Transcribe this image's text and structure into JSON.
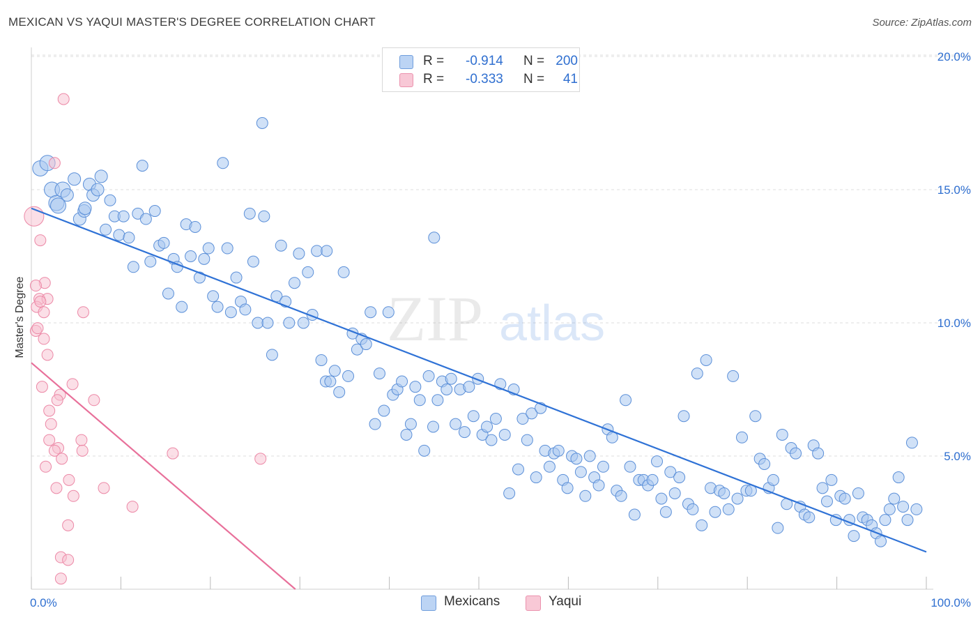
{
  "title": "MEXICAN VS YAQUI MASTER'S DEGREE CORRELATION CHART",
  "source": "Source: ZipAtlas.com",
  "watermark": {
    "zip": "ZIP",
    "atlas": "atlas"
  },
  "legend": {
    "rows": [
      {
        "r_label": "R =",
        "r_value": "-0.914",
        "n_label": "N =",
        "n_value": "200"
      },
      {
        "r_label": "R =",
        "r_value": "-0.333",
        "n_label": "N =",
        "n_value": "41"
      }
    ]
  },
  "colors": {
    "blue_fill": "#a9c8f0",
    "blue_stroke": "#5b8fd8",
    "blue_line": "#2f72d6",
    "pink_fill": "#f7bfd0",
    "pink_stroke": "#ec88a6",
    "pink_line": "#e8709a",
    "tick_label": "#2f6fd0",
    "grid": "#dddddd"
  },
  "chart_data": {
    "type": "scatter",
    "title": "MEXICAN VS YAQUI MASTER'S DEGREE CORRELATION CHART",
    "xlabel": "",
    "ylabel": "Master's Degree",
    "xlim": [
      0,
      100
    ],
    "ylim": [
      0,
      20.5
    ],
    "x_tick_labels": [
      "0.0%",
      "100.0%"
    ],
    "y_ticks": [
      5,
      10,
      15,
      20
    ],
    "y_tick_labels": [
      "5.0%",
      "10.0%",
      "15.0%",
      "20.0%"
    ],
    "grid": true,
    "legend_position": "bottom-center",
    "series": [
      {
        "name": "Mexicans",
        "r": -0.914,
        "n": 200,
        "trend": [
          [
            0,
            14.3
          ],
          [
            100,
            1.4
          ]
        ],
        "points": [
          [
            1.0,
            15.8
          ],
          [
            1.8,
            16.0
          ],
          [
            2.3,
            15.0
          ],
          [
            2.8,
            14.5
          ],
          [
            3.5,
            15.0
          ],
          [
            4.0,
            14.8
          ],
          [
            4.8,
            15.4
          ],
          [
            5.4,
            13.9
          ],
          [
            5.9,
            14.2
          ],
          [
            6.5,
            15.2
          ],
          [
            6.9,
            14.8
          ],
          [
            7.4,
            15.0
          ],
          [
            7.8,
            15.5
          ],
          [
            8.3,
            13.5
          ],
          [
            8.8,
            14.6
          ],
          [
            9.3,
            14.0
          ],
          [
            9.8,
            13.3
          ],
          [
            10.3,
            14.0
          ],
          [
            10.9,
            13.2
          ],
          [
            11.4,
            12.1
          ],
          [
            11.9,
            14.1
          ],
          [
            12.4,
            15.9
          ],
          [
            12.8,
            13.9
          ],
          [
            13.3,
            12.3
          ],
          [
            13.8,
            14.2
          ],
          [
            14.3,
            12.9
          ],
          [
            14.8,
            13.0
          ],
          [
            15.3,
            11.1
          ],
          [
            15.9,
            12.4
          ],
          [
            16.3,
            12.1
          ],
          [
            16.8,
            10.6
          ],
          [
            17.3,
            13.7
          ],
          [
            17.8,
            12.5
          ],
          [
            18.3,
            13.6
          ],
          [
            18.8,
            11.7
          ],
          [
            19.3,
            12.4
          ],
          [
            19.8,
            12.8
          ],
          [
            20.3,
            11.0
          ],
          [
            20.8,
            10.6
          ],
          [
            21.4,
            16.0
          ],
          [
            21.9,
            12.8
          ],
          [
            22.3,
            10.4
          ],
          [
            22.9,
            11.7
          ],
          [
            23.4,
            10.8
          ],
          [
            23.9,
            10.5
          ],
          [
            24.4,
            14.1
          ],
          [
            24.8,
            12.3
          ],
          [
            25.3,
            10.0
          ],
          [
            25.8,
            17.5
          ],
          [
            26.4,
            10.0
          ],
          [
            26.9,
            8.8
          ],
          [
            27.4,
            11.0
          ],
          [
            27.9,
            12.9
          ],
          [
            28.4,
            10.8
          ],
          [
            28.8,
            10.0
          ],
          [
            29.4,
            11.5
          ],
          [
            29.9,
            12.6
          ],
          [
            30.4,
            10.0
          ],
          [
            30.9,
            11.9
          ],
          [
            31.4,
            10.3
          ],
          [
            31.9,
            12.7
          ],
          [
            32.4,
            8.6
          ],
          [
            32.9,
            7.8
          ],
          [
            33.4,
            7.8
          ],
          [
            33.9,
            8.2
          ],
          [
            34.4,
            7.4
          ],
          [
            34.9,
            11.9
          ],
          [
            35.4,
            8.0
          ],
          [
            35.9,
            9.6
          ],
          [
            36.4,
            9.0
          ],
          [
            36.9,
            9.4
          ],
          [
            37.4,
            9.2
          ],
          [
            37.9,
            10.4
          ],
          [
            38.4,
            6.2
          ],
          [
            38.9,
            8.1
          ],
          [
            39.4,
            6.7
          ],
          [
            39.9,
            10.4
          ],
          [
            40.4,
            7.3
          ],
          [
            40.9,
            7.5
          ],
          [
            41.4,
            7.8
          ],
          [
            41.9,
            5.8
          ],
          [
            42.4,
            6.2
          ],
          [
            42.9,
            7.6
          ],
          [
            43.4,
            7.1
          ],
          [
            43.9,
            5.2
          ],
          [
            44.4,
            8.0
          ],
          [
            44.9,
            6.1
          ],
          [
            45.4,
            7.1
          ],
          [
            45.9,
            7.8
          ],
          [
            46.4,
            7.5
          ],
          [
            46.9,
            7.9
          ],
          [
            47.4,
            6.2
          ],
          [
            47.9,
            7.5
          ],
          [
            48.4,
            5.9
          ],
          [
            48.9,
            7.6
          ],
          [
            49.4,
            6.5
          ],
          [
            49.9,
            7.9
          ],
          [
            50.4,
            5.8
          ],
          [
            50.9,
            6.1
          ],
          [
            51.4,
            5.6
          ],
          [
            51.9,
            6.4
          ],
          [
            52.4,
            7.7
          ],
          [
            52.9,
            5.8
          ],
          [
            53.4,
            3.6
          ],
          [
            53.9,
            7.5
          ],
          [
            54.4,
            4.5
          ],
          [
            54.9,
            6.4
          ],
          [
            55.4,
            5.6
          ],
          [
            55.9,
            6.6
          ],
          [
            56.4,
            4.2
          ],
          [
            56.9,
            6.8
          ],
          [
            57.4,
            5.2
          ],
          [
            57.9,
            4.6
          ],
          [
            58.4,
            5.1
          ],
          [
            58.9,
            5.2
          ],
          [
            59.4,
            4.1
          ],
          [
            59.9,
            3.8
          ],
          [
            60.4,
            5.0
          ],
          [
            60.9,
            4.9
          ],
          [
            61.4,
            4.4
          ],
          [
            61.9,
            3.5
          ],
          [
            62.4,
            5.0
          ],
          [
            62.9,
            4.2
          ],
          [
            63.4,
            3.9
          ],
          [
            63.9,
            4.6
          ],
          [
            64.4,
            6.0
          ],
          [
            64.9,
            5.7
          ],
          [
            65.4,
            3.7
          ],
          [
            65.9,
            3.5
          ],
          [
            66.4,
            7.1
          ],
          [
            66.9,
            4.6
          ],
          [
            67.4,
            2.8
          ],
          [
            67.9,
            4.1
          ],
          [
            68.4,
            4.1
          ],
          [
            68.9,
            3.9
          ],
          [
            69.4,
            4.1
          ],
          [
            69.9,
            4.8
          ],
          [
            70.4,
            3.4
          ],
          [
            70.9,
            2.9
          ],
          [
            71.4,
            4.4
          ],
          [
            71.9,
            3.6
          ],
          [
            72.4,
            4.2
          ],
          [
            72.9,
            6.5
          ],
          [
            73.4,
            3.2
          ],
          [
            73.9,
            3.0
          ],
          [
            74.4,
            8.1
          ],
          [
            74.9,
            2.4
          ],
          [
            75.4,
            8.6
          ],
          [
            75.9,
            3.8
          ],
          [
            76.4,
            2.9
          ],
          [
            76.9,
            3.7
          ],
          [
            77.4,
            3.6
          ],
          [
            77.9,
            3.0
          ],
          [
            78.4,
            8.0
          ],
          [
            78.9,
            3.4
          ],
          [
            79.4,
            5.7
          ],
          [
            79.9,
            3.7
          ],
          [
            80.4,
            3.7
          ],
          [
            80.9,
            6.5
          ],
          [
            81.4,
            4.9
          ],
          [
            81.9,
            4.7
          ],
          [
            82.4,
            3.8
          ],
          [
            82.9,
            4.1
          ],
          [
            83.4,
            2.3
          ],
          [
            83.9,
            5.8
          ],
          [
            84.4,
            3.2
          ],
          [
            84.9,
            5.3
          ],
          [
            85.4,
            5.1
          ],
          [
            85.9,
            3.1
          ],
          [
            86.4,
            2.8
          ],
          [
            86.9,
            2.7
          ],
          [
            87.4,
            5.4
          ],
          [
            87.9,
            5.1
          ],
          [
            88.4,
            3.8
          ],
          [
            88.9,
            3.3
          ],
          [
            89.4,
            4.1
          ],
          [
            89.9,
            2.6
          ],
          [
            90.4,
            3.5
          ],
          [
            90.9,
            3.4
          ],
          [
            91.4,
            2.6
          ],
          [
            91.9,
            2.0
          ],
          [
            92.4,
            3.6
          ],
          [
            92.9,
            2.7
          ],
          [
            93.4,
            2.6
          ],
          [
            93.9,
            2.4
          ],
          [
            94.4,
            2.1
          ],
          [
            94.9,
            1.8
          ],
          [
            95.4,
            2.6
          ],
          [
            95.9,
            3.0
          ],
          [
            96.4,
            3.4
          ],
          [
            96.9,
            4.2
          ],
          [
            97.4,
            3.1
          ],
          [
            97.9,
            2.6
          ],
          [
            98.4,
            5.5
          ],
          [
            98.9,
            3.0
          ],
          [
            3.0,
            14.4
          ],
          [
            6.0,
            14.3
          ],
          [
            26.0,
            14.0
          ],
          [
            33.0,
            12.7
          ],
          [
            45.0,
            13.2
          ]
        ]
      },
      {
        "name": "Yaqui",
        "r": -0.333,
        "n": 41,
        "trend": [
          [
            0,
            8.5
          ],
          [
            29.5,
            0
          ]
        ],
        "points": [
          [
            0.3,
            14.0
          ],
          [
            2.6,
            16.0
          ],
          [
            3.6,
            18.4
          ],
          [
            1.0,
            13.1
          ],
          [
            1.5,
            11.5
          ],
          [
            0.5,
            11.4
          ],
          [
            0.9,
            10.9
          ],
          [
            1.8,
            10.9
          ],
          [
            0.6,
            10.6
          ],
          [
            1.4,
            10.4
          ],
          [
            5.8,
            10.4
          ],
          [
            0.5,
            9.7
          ],
          [
            1.4,
            9.4
          ],
          [
            1.8,
            8.8
          ],
          [
            1.2,
            7.6
          ],
          [
            4.6,
            7.7
          ],
          [
            3.2,
            7.3
          ],
          [
            2.9,
            7.1
          ],
          [
            7.0,
            7.1
          ],
          [
            2.0,
            6.7
          ],
          [
            2.2,
            6.2
          ],
          [
            2.0,
            5.6
          ],
          [
            5.6,
            5.6
          ],
          [
            3.0,
            5.3
          ],
          [
            2.6,
            5.2
          ],
          [
            5.7,
            5.2
          ],
          [
            15.8,
            5.1
          ],
          [
            3.4,
            4.9
          ],
          [
            25.6,
            4.9
          ],
          [
            1.6,
            4.6
          ],
          [
            4.2,
            4.1
          ],
          [
            2.8,
            3.8
          ],
          [
            8.1,
            3.8
          ],
          [
            4.7,
            3.5
          ],
          [
            11.3,
            3.1
          ],
          [
            4.1,
            2.4
          ],
          [
            3.3,
            1.2
          ],
          [
            4.1,
            1.1
          ],
          [
            3.3,
            0.4
          ],
          [
            1.0,
            10.8
          ],
          [
            0.7,
            9.8
          ]
        ]
      }
    ]
  }
}
